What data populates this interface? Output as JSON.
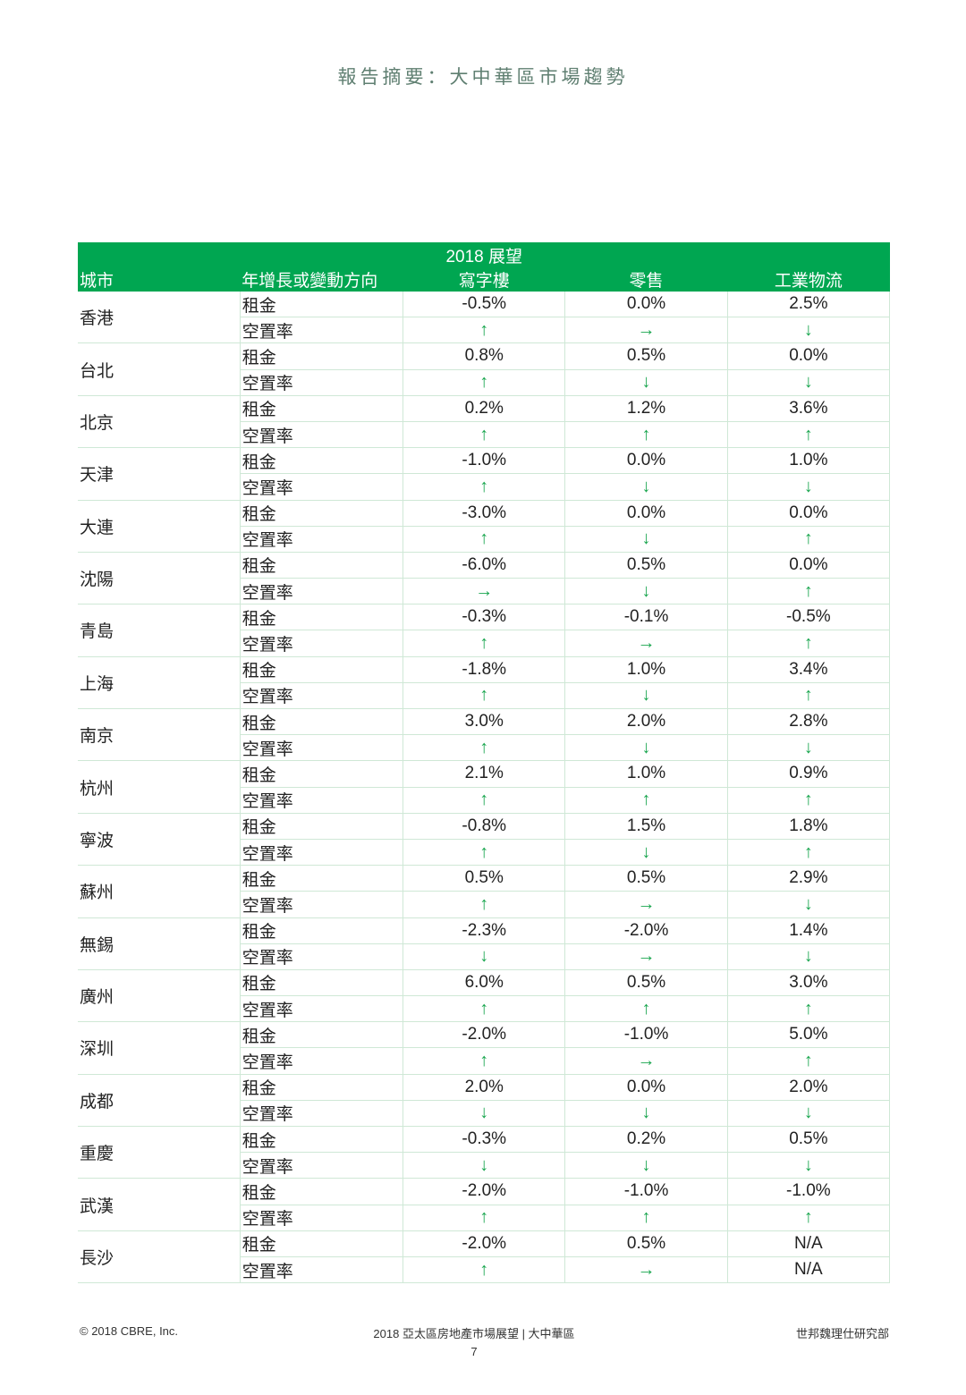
{
  "title": "報告摘要：大中華區市場趨勢",
  "table": {
    "header": {
      "year": "2018 展望",
      "city": "城市",
      "direction": "年增長或變動方向",
      "office": "寫字樓",
      "retail": "零售",
      "industrial": "工業物流"
    },
    "metric_labels": {
      "rent": "租金",
      "vacancy": "空置率"
    },
    "rows": [
      {
        "city": "香港",
        "rent": [
          "-0.5%",
          "0.0%",
          "2.5%"
        ],
        "vacancy": [
          "↑",
          "→",
          "↓"
        ]
      },
      {
        "city": "台北",
        "rent": [
          "0.8%",
          "0.5%",
          "0.0%"
        ],
        "vacancy": [
          "↑",
          "↓",
          "↓"
        ]
      },
      {
        "city": "北京",
        "rent": [
          "0.2%",
          "1.2%",
          "3.6%"
        ],
        "vacancy": [
          "↑",
          "↑",
          "↑"
        ]
      },
      {
        "city": "天津",
        "rent": [
          "-1.0%",
          "0.0%",
          "1.0%"
        ],
        "vacancy": [
          "↑",
          "↓",
          "↓"
        ]
      },
      {
        "city": "大連",
        "rent": [
          "-3.0%",
          "0.0%",
          "0.0%"
        ],
        "vacancy": [
          "↑",
          "↓",
          "↑"
        ]
      },
      {
        "city": "沈陽",
        "rent": [
          "-6.0%",
          "0.5%",
          "0.0%"
        ],
        "vacancy": [
          "→",
          "↓",
          "↑"
        ]
      },
      {
        "city": "青島",
        "rent": [
          "-0.3%",
          "-0.1%",
          "-0.5%"
        ],
        "vacancy": [
          "↑",
          "→",
          "↑"
        ]
      },
      {
        "city": "上海",
        "rent": [
          "-1.8%",
          "1.0%",
          "3.4%"
        ],
        "vacancy": [
          "↑",
          "↓",
          "↑"
        ]
      },
      {
        "city": "南京",
        "rent": [
          "3.0%",
          "2.0%",
          "2.8%"
        ],
        "vacancy": [
          "↑",
          "↓",
          "↓"
        ]
      },
      {
        "city": "杭州",
        "rent": [
          "2.1%",
          "1.0%",
          "0.9%"
        ],
        "vacancy": [
          "↑",
          "↑",
          "↑"
        ]
      },
      {
        "city": "寧波",
        "rent": [
          "-0.8%",
          "1.5%",
          "1.8%"
        ],
        "vacancy": [
          "↑",
          "↓",
          "↑"
        ]
      },
      {
        "city": "蘇州",
        "rent": [
          "0.5%",
          "0.5%",
          "2.9%"
        ],
        "vacancy": [
          "↑",
          "→",
          "↓"
        ]
      },
      {
        "city": "無錫",
        "rent": [
          "-2.3%",
          "-2.0%",
          "1.4%"
        ],
        "vacancy": [
          "↓",
          "→",
          "↓"
        ]
      },
      {
        "city": "廣州",
        "rent": [
          "6.0%",
          "0.5%",
          "3.0%"
        ],
        "vacancy": [
          "↑",
          "↑",
          "↑"
        ]
      },
      {
        "city": "深圳",
        "rent": [
          "-2.0%",
          "-1.0%",
          "5.0%"
        ],
        "vacancy": [
          "↑",
          "→",
          "↑"
        ]
      },
      {
        "city": "成都",
        "rent": [
          "2.0%",
          "0.0%",
          "2.0%"
        ],
        "vacancy": [
          "↓",
          "↓",
          "↓"
        ]
      },
      {
        "city": "重慶",
        "rent": [
          "-0.3%",
          "0.2%",
          "0.5%"
        ],
        "vacancy": [
          "↓",
          "↓",
          "↓"
        ]
      },
      {
        "city": "武漢",
        "rent": [
          "-2.0%",
          "-1.0%",
          "-1.0%"
        ],
        "vacancy": [
          "↑",
          "↑",
          "↑"
        ]
      },
      {
        "city": "長沙",
        "rent": [
          "-2.0%",
          "0.5%",
          "N/A"
        ],
        "vacancy": [
          "↑",
          "→",
          "N/A"
        ]
      }
    ]
  },
  "footer": {
    "copyright": "© 2018 CBRE, Inc.",
    "center": "2018 亞太區房地產市場展望 | 大中華區",
    "right": "世邦魏理仕研究部",
    "page": "7"
  },
  "colors": {
    "header_bg": "#00a651",
    "arrow": "#1aa64f",
    "title": "#5f7f71"
  }
}
